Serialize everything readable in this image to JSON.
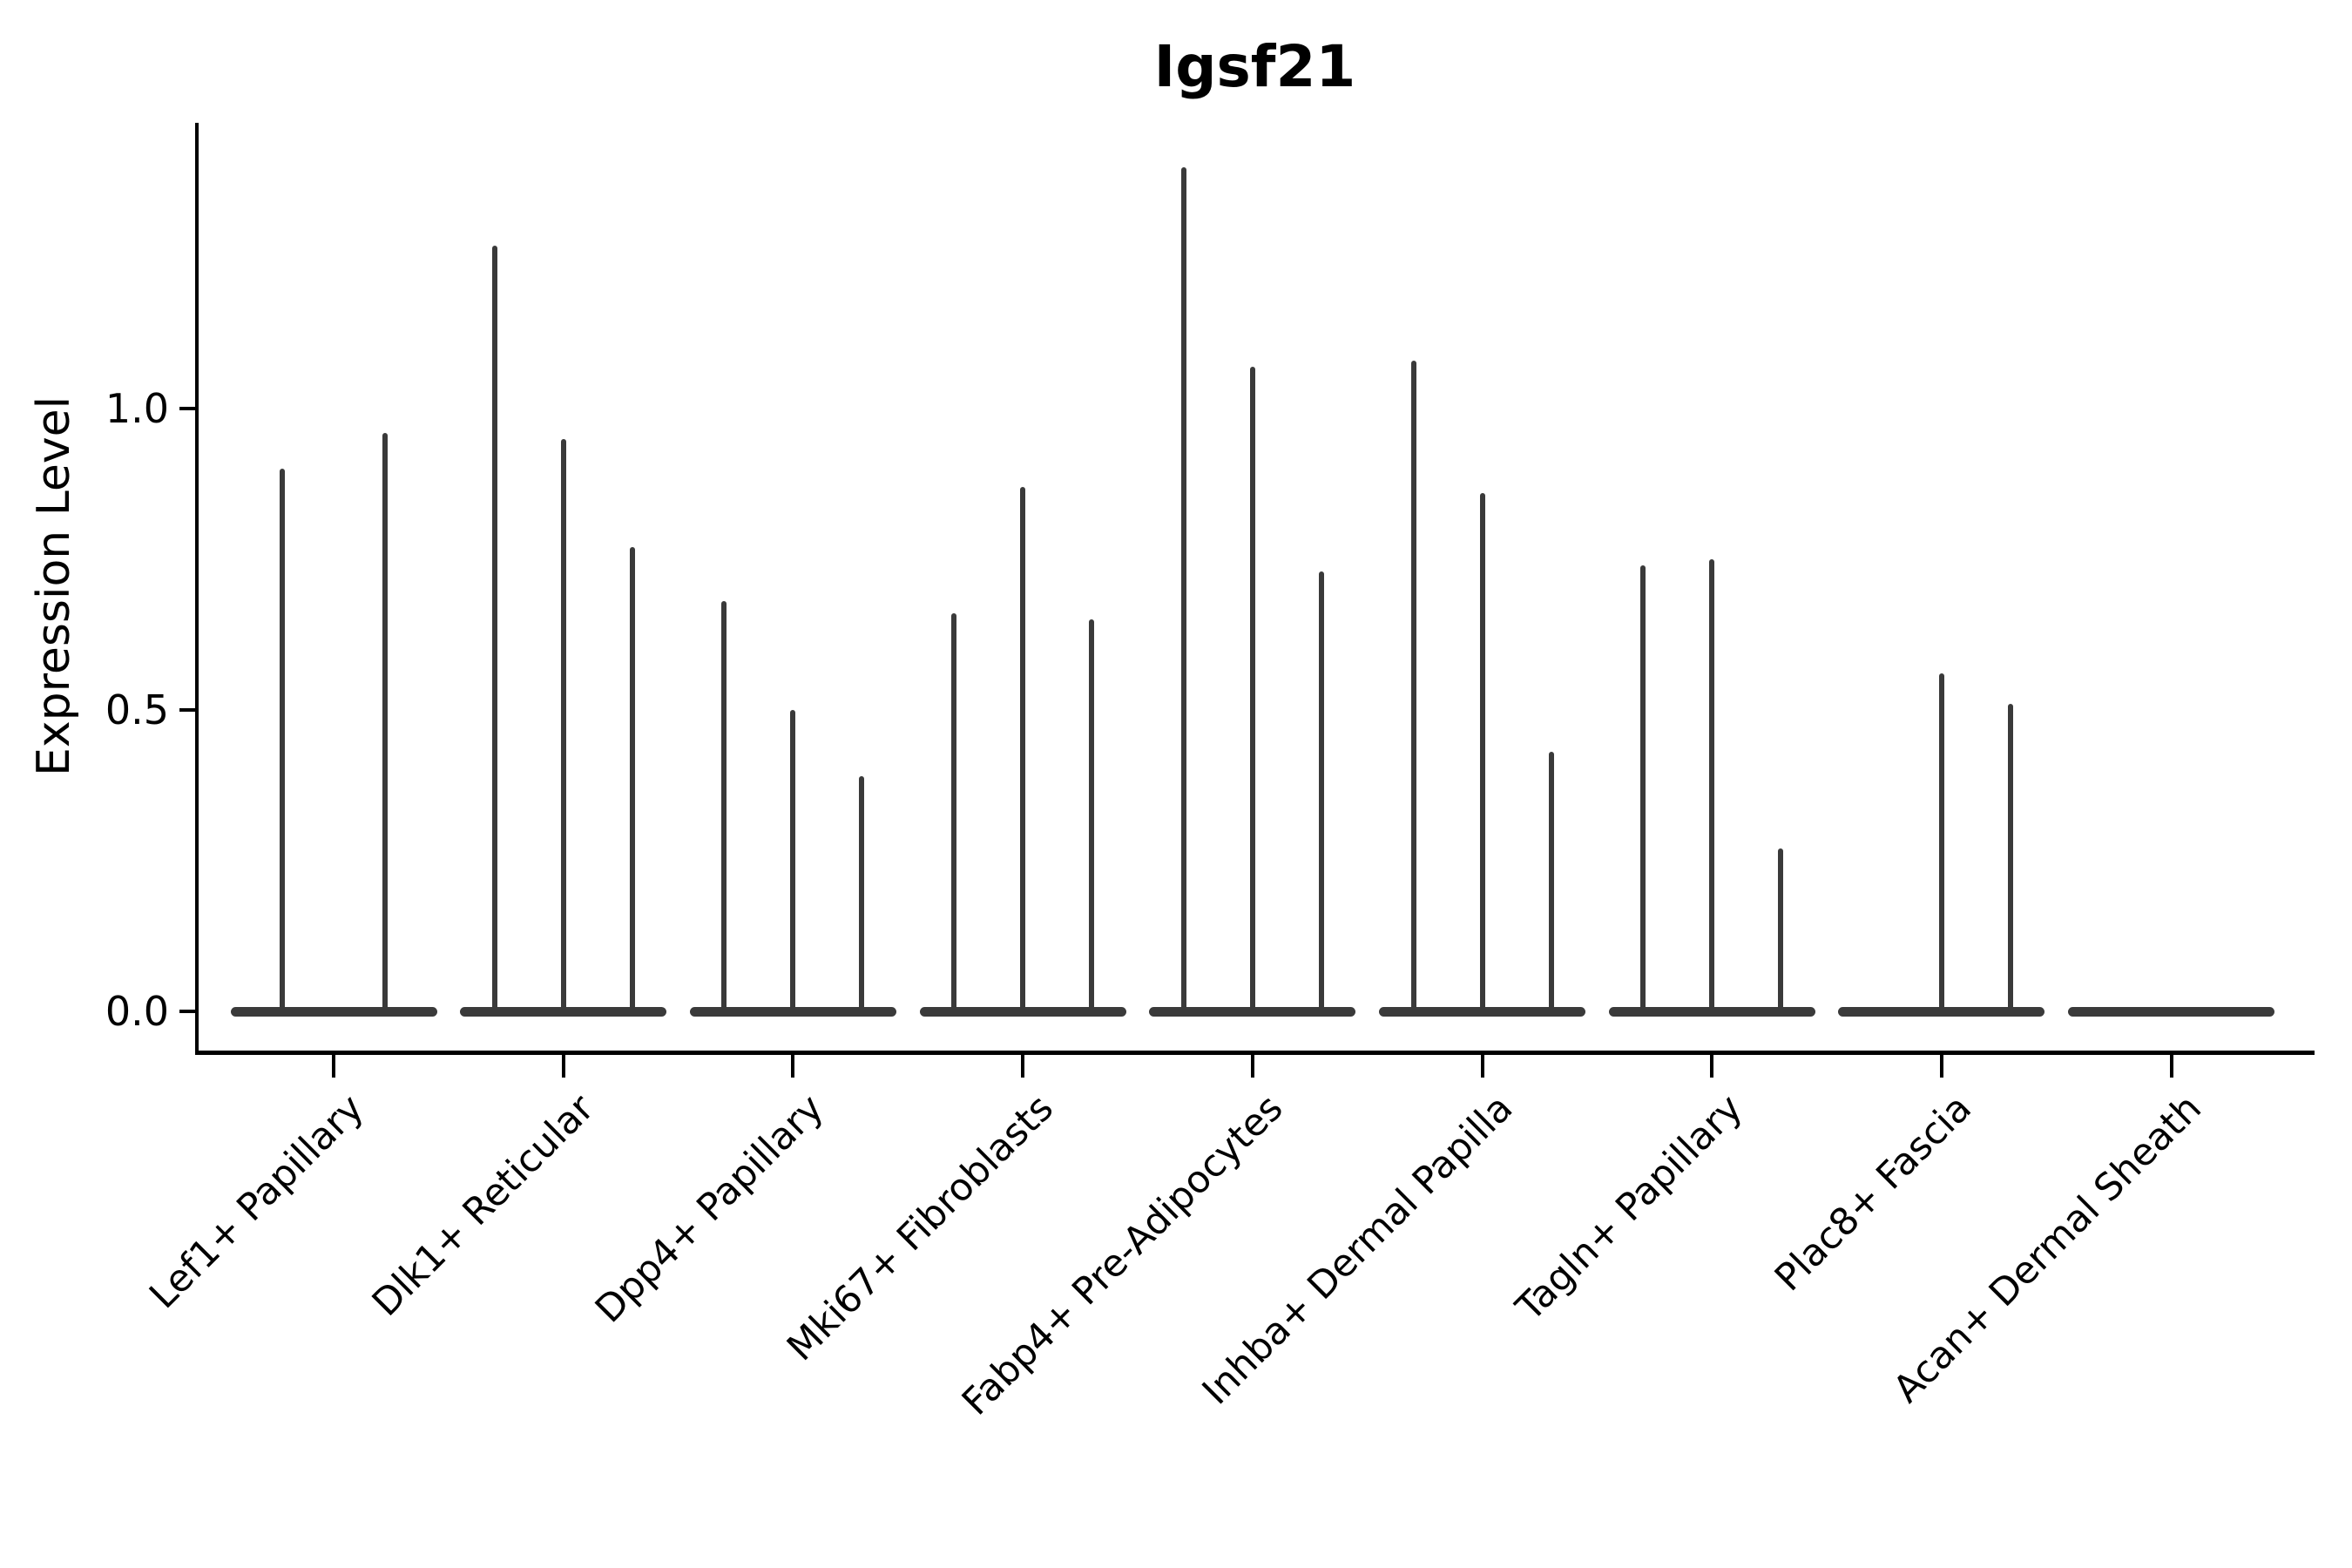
{
  "title": "Igsf21",
  "ylabel": "Expression Level",
  "colors": {
    "violin": "#3a3a3a",
    "axis": "#000000",
    "text": "#000000",
    "background": "#ffffff"
  },
  "chart_data": {
    "type": "violin",
    "title": "Igsf21",
    "xlabel": "",
    "ylabel": "Expression Level",
    "ylim": [
      -0.07,
      1.47
    ],
    "yticks": [
      0.0,
      0.5,
      1.0
    ],
    "yticklabels": [
      "0.0",
      "0.5",
      "1.0"
    ],
    "grid": false,
    "legend": "none",
    "description": "Stacked-violin style gene expression plot; each category holds 2-3 dodged ultra-thin violins (spikes) rising from a flat base at expression 0; peak value listed per sub-violin",
    "categories": [
      "Lef1+ Papillary",
      "Dlk1+ Reticular",
      "Dpp4+ Papillary",
      "Mki67+ Fibroblasts",
      "Fabp4+ Pre-Adipocytes",
      "Inhba+ Dermal Papilla",
      "Tagln+ Papillary",
      "Plac8+ Fascia",
      "Acan+ Dermal Sheath"
    ],
    "series": [
      {
        "category": "Lef1+ Papillary",
        "sub_violin_peaks": [
          0.9,
          0.96
        ]
      },
      {
        "category": "Dlk1+ Reticular",
        "sub_violin_peaks": [
          1.27,
          0.95,
          0.77
        ]
      },
      {
        "category": "Dpp4+ Papillary",
        "sub_violin_peaks": [
          0.68,
          0.5,
          0.39
        ]
      },
      {
        "category": "Mki67+ Fibroblasts",
        "sub_violin_peaks": [
          0.66,
          0.87,
          0.65
        ]
      },
      {
        "category": "Fabp4+ Pre-Adipocytes",
        "sub_violin_peaks": [
          1.4,
          1.07,
          0.73
        ]
      },
      {
        "category": "Inhba+ Dermal Papilla",
        "sub_violin_peaks": [
          1.08,
          0.86,
          0.43
        ]
      },
      {
        "category": "Tagln+ Papillary",
        "sub_violin_peaks": [
          0.74,
          0.75,
          0.27
        ]
      },
      {
        "category": "Plac8+ Fascia",
        "sub_violin_peaks": [
          0.0,
          0.56,
          0.51
        ]
      },
      {
        "category": "Acan+ Dermal Sheath",
        "sub_violin_peaks": [
          0.0,
          0.0,
          0.0
        ]
      }
    ]
  }
}
